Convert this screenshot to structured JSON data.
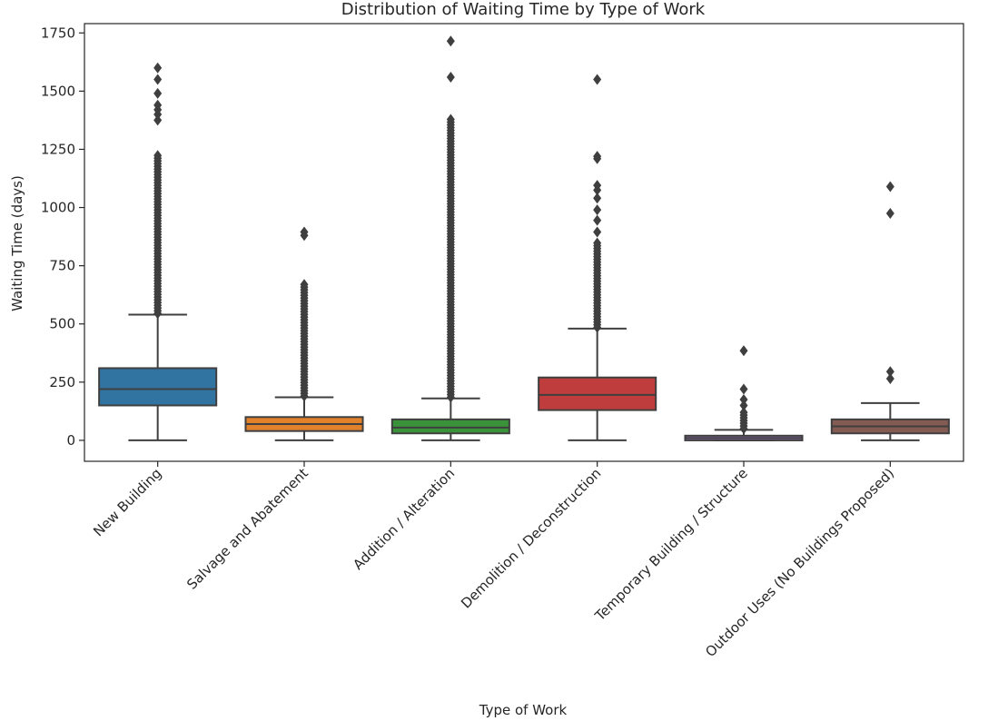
{
  "chart_data": {
    "type": "boxplot",
    "title": "Distribution of Waiting Time by Type of Work",
    "xlabel": "Type of Work",
    "ylabel": "Waiting Time (days)",
    "ylim": [
      -90,
      1790
    ],
    "yticks": [
      0,
      250,
      500,
      750,
      1000,
      1250,
      1500,
      1750
    ],
    "grid": false,
    "categories": [
      "New Building",
      "Salvage and Abatement",
      "Addition / Alteration",
      "Demolition / Deconstruction",
      "Temporary Building / Structure",
      "Outdoor Uses (No Buildings Proposed)"
    ],
    "colors": [
      "#3274a1",
      "#e1812c",
      "#3a923a",
      "#c03d3e",
      "#9372b2",
      "#845b53"
    ],
    "boxes": [
      {
        "whisker_low": 0,
        "q1": 150,
        "median": 220,
        "q3": 310,
        "whisker_high": 540,
        "outlier_range": [
          545,
          1230
        ],
        "outliers": [
          1375,
          1400,
          1420,
          1440,
          1490,
          1550,
          1600
        ]
      },
      {
        "whisker_low": 0,
        "q1": 40,
        "median": 70,
        "q3": 100,
        "whisker_high": 185,
        "outlier_range": [
          190,
          680
        ],
        "outliers": [
          880,
          895
        ]
      },
      {
        "whisker_low": 0,
        "q1": 30,
        "median": 55,
        "q3": 90,
        "whisker_high": 180,
        "outlier_range": [
          185,
          1380
        ],
        "outliers": [
          1560,
          1715
        ]
      },
      {
        "whisker_low": 0,
        "q1": 130,
        "median": 195,
        "q3": 270,
        "whisker_high": 480,
        "outlier_range": [
          485,
          850
        ],
        "outliers": [
          895,
          945,
          990,
          1040,
          1075,
          1095,
          1210,
          1220,
          1550
        ]
      },
      {
        "whisker_low": 0,
        "q1": 0,
        "median": 10,
        "q3": 20,
        "whisker_high": 45,
        "outlier_range": [
          50,
          130
        ],
        "outliers": [
          150,
          175,
          220,
          385
        ]
      },
      {
        "whisker_low": 0,
        "q1": 30,
        "median": 60,
        "q3": 90,
        "whisker_high": 160,
        "outlier_range": [],
        "outliers": [
          265,
          295,
          975,
          1090
        ]
      }
    ]
  }
}
